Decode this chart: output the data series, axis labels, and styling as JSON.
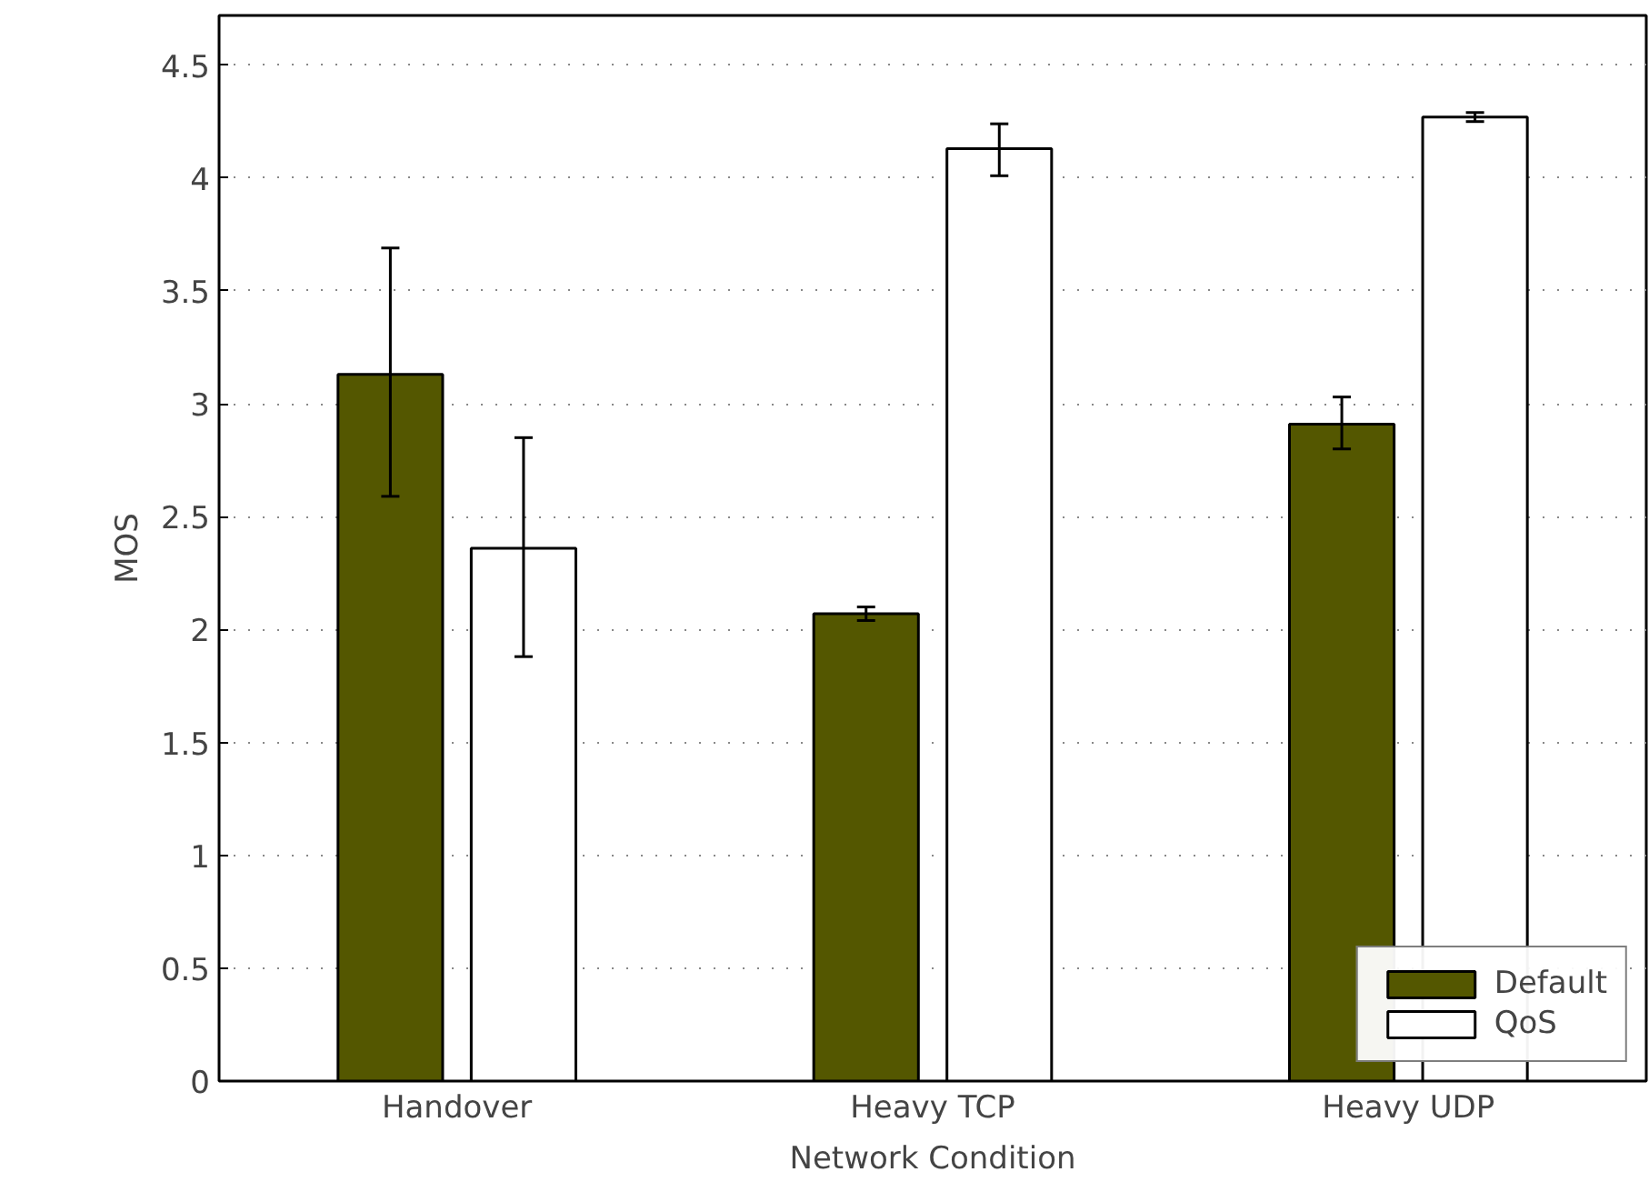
{
  "chart_data": {
    "type": "bar",
    "xlabel": "Network Condition",
    "ylabel": "MOS",
    "categories": [
      "Handover",
      "Heavy TCP",
      "Heavy UDP"
    ],
    "series": [
      {
        "name": "Default",
        "color": "#545700",
        "values": [
          3.13,
          2.07,
          2.91
        ],
        "errors": [
          [
            2.59,
            3.69
          ],
          [
            2.04,
            2.1
          ],
          [
            2.8,
            3.03
          ]
        ]
      },
      {
        "name": "QoS",
        "color": "#ffffff",
        "values": [
          2.36,
          4.13,
          4.27
        ],
        "errors": [
          [
            1.88,
            2.85
          ],
          [
            4.01,
            4.24
          ],
          [
            4.25,
            4.29
          ]
        ]
      }
    ],
    "ylim": [
      0,
      4.72
    ],
    "yticks": [
      0,
      0.5,
      1,
      1.5,
      2,
      2.5,
      3,
      3.5,
      4,
      4.5
    ],
    "grid": "y",
    "legend": "bottom right"
  }
}
